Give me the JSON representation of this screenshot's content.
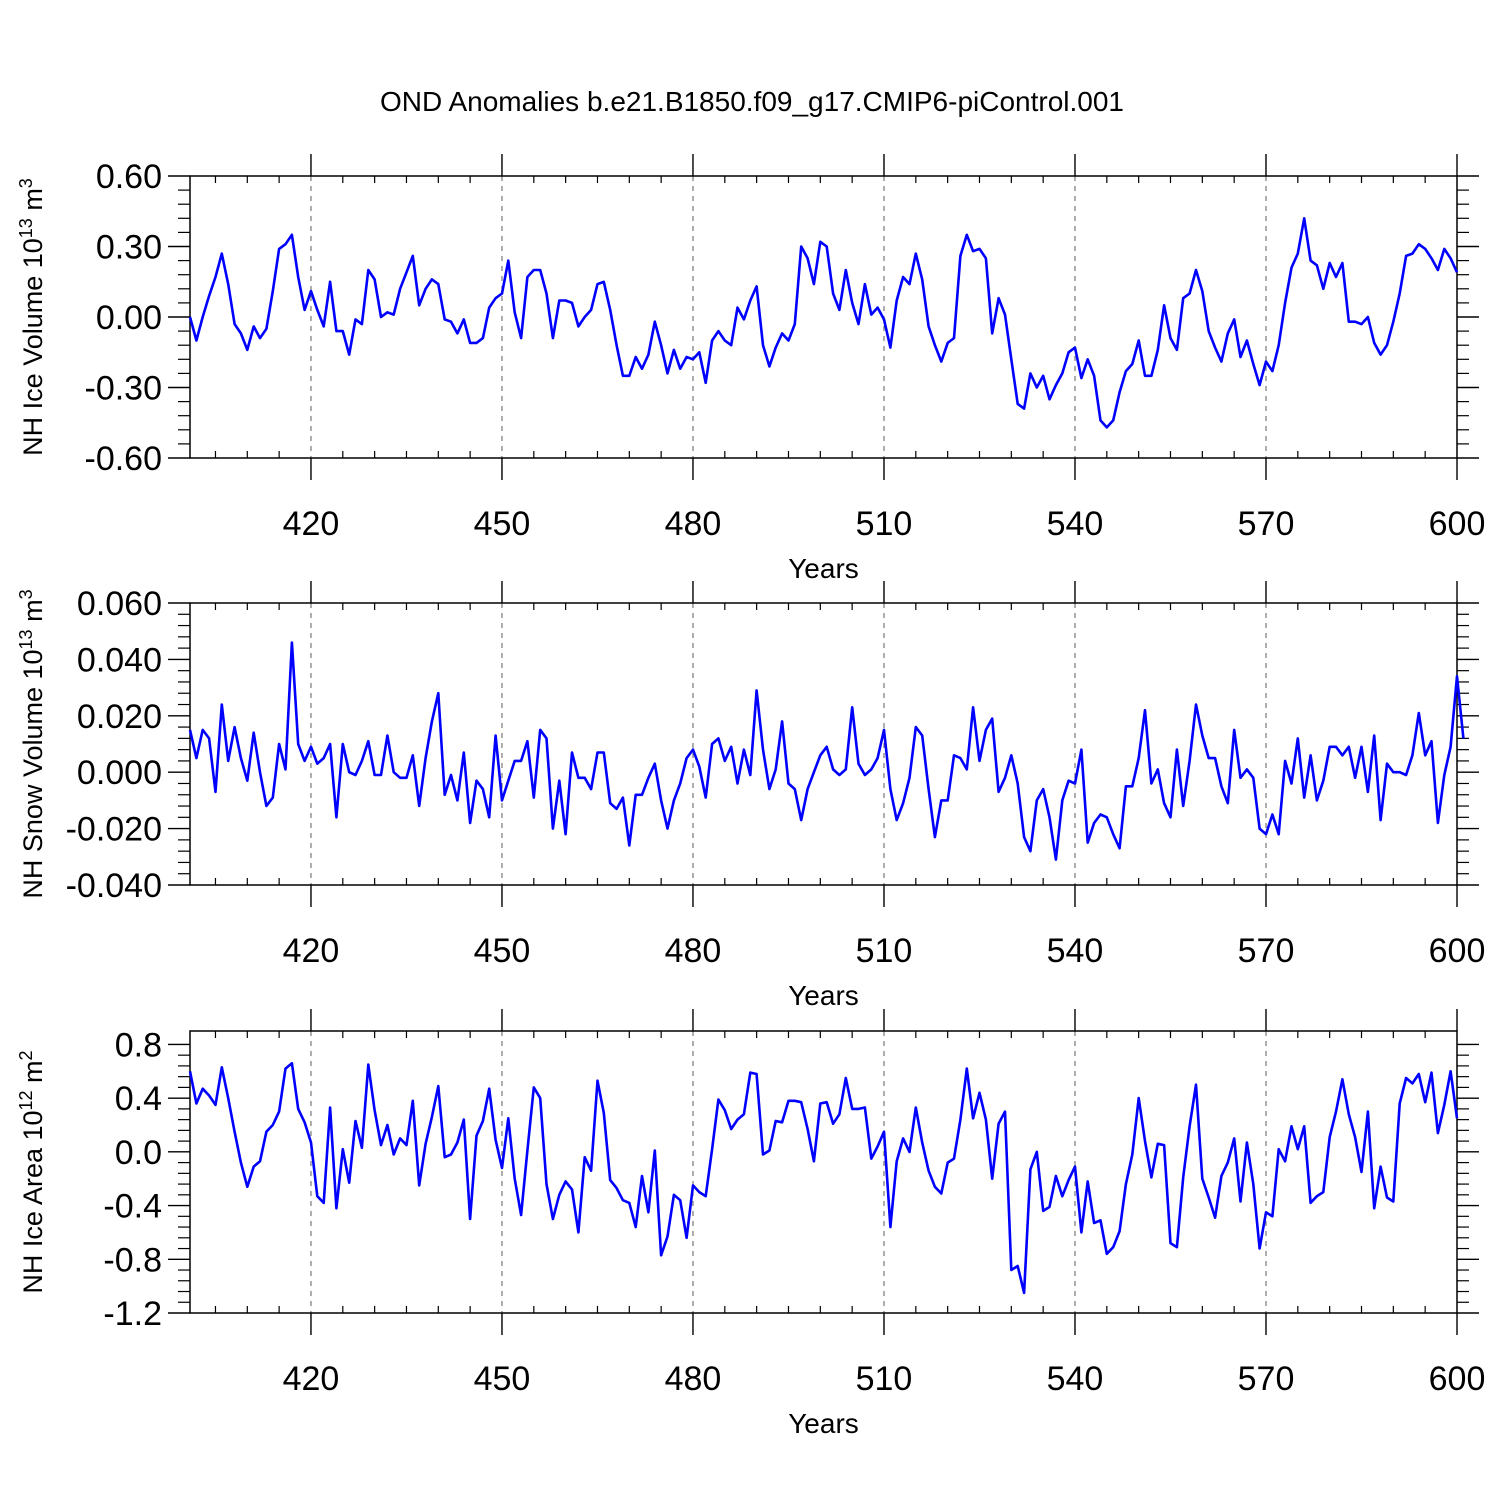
{
  "title": "OND Anomalies b.e21.B1850.f09_g17.CMIP6-piControl.001",
  "line_color": "#0000ff",
  "chart_data": [
    {
      "type": "line",
      "ylabel": {
        "main": "NH Ice Volume 10",
        "exp": "13",
        "unit": " m",
        "unit_exp": "3"
      },
      "xlabel": "Years",
      "xlim": [
        401,
        600
      ],
      "ylim": [
        -0.6,
        0.6
      ],
      "xticks": [
        420,
        450,
        480,
        510,
        540,
        570,
        600
      ],
      "yticks": [
        -0.6,
        -0.3,
        0.0,
        0.3,
        0.6
      ],
      "ytick_labels": [
        "-0.60",
        "-0.30",
        "0.00",
        "0.30",
        "0.60"
      ],
      "series": [
        {
          "name": "NH Ice Volume",
          "x_start": 401,
          "x_step": 1,
          "values": [
            0.0,
            -0.1,
            0.0,
            0.09,
            0.17,
            0.27,
            0.14,
            -0.03,
            -0.07,
            -0.14,
            -0.04,
            -0.09,
            -0.05,
            0.11,
            0.29,
            0.31,
            0.35,
            0.17,
            0.03,
            0.11,
            0.03,
            -0.04,
            0.15,
            -0.06,
            -0.06,
            -0.16,
            -0.01,
            -0.03,
            0.2,
            0.16,
            0.0,
            0.02,
            0.01,
            0.12,
            0.19,
            0.26,
            0.05,
            0.12,
            0.16,
            0.14,
            -0.01,
            -0.02,
            -0.07,
            -0.01,
            -0.11,
            -0.11,
            -0.09,
            0.04,
            0.08,
            0.1,
            0.24,
            0.02,
            -0.09,
            0.17,
            0.2,
            0.2,
            0.1,
            -0.09,
            0.07,
            0.07,
            0.06,
            -0.04,
            0.0,
            0.03,
            0.14,
            0.15,
            0.03,
            -0.12,
            -0.25,
            -0.25,
            -0.17,
            -0.22,
            -0.16,
            -0.02,
            -0.12,
            -0.24,
            -0.14,
            -0.22,
            -0.17,
            -0.18,
            -0.15,
            -0.28,
            -0.1,
            -0.06,
            -0.1,
            -0.12,
            0.04,
            -0.01,
            0.07,
            0.13,
            -0.12,
            -0.21,
            -0.13,
            -0.07,
            -0.1,
            -0.03,
            0.3,
            0.25,
            0.14,
            0.32,
            0.3,
            0.1,
            0.03,
            0.2,
            0.06,
            -0.03,
            0.14,
            0.01,
            0.04,
            -0.01,
            -0.13,
            0.07,
            0.17,
            0.14,
            0.27,
            0.16,
            -0.04,
            -0.12,
            -0.19,
            -0.11,
            -0.09,
            0.26,
            0.35,
            0.28,
            0.29,
            0.25,
            -0.07,
            0.08,
            0.01,
            -0.18,
            -0.37,
            -0.39,
            -0.24,
            -0.3,
            -0.25,
            -0.35,
            -0.29,
            -0.24,
            -0.15,
            -0.13,
            -0.26,
            -0.18,
            -0.25,
            -0.44,
            -0.47,
            -0.44,
            -0.32,
            -0.23,
            -0.2,
            -0.1,
            -0.25,
            -0.25,
            -0.14,
            0.05,
            -0.09,
            -0.14,
            0.08,
            0.1,
            0.2,
            0.11,
            -0.06,
            -0.13,
            -0.19,
            -0.07,
            -0.01,
            -0.17,
            -0.1,
            -0.2,
            -0.29,
            -0.19,
            -0.23,
            -0.12,
            0.06,
            0.21,
            0.27,
            0.42,
            0.24,
            0.22,
            0.12,
            0.23,
            0.17,
            0.23,
            -0.02,
            -0.02,
            -0.03,
            0.0,
            -0.11,
            -0.16,
            -0.12,
            -0.02,
            0.1,
            0.26,
            0.27,
            0.31,
            0.29,
            0.25,
            0.2,
            0.29,
            0.25,
            0.19
          ]
        }
      ]
    },
    {
      "type": "line",
      "ylabel": {
        "main": "NH Snow Volume 10",
        "exp": "13",
        "unit": " m",
        "unit_exp": "3"
      },
      "xlabel": "Years",
      "xlim": [
        401,
        600
      ],
      "ylim": [
        -0.04,
        0.06
      ],
      "xticks": [
        420,
        450,
        480,
        510,
        540,
        570,
        600
      ],
      "yticks": [
        -0.04,
        -0.02,
        0.0,
        0.02,
        0.04,
        0.06
      ],
      "ytick_labels": [
        "-0.040",
        "-0.020",
        "0.000",
        "0.020",
        "0.040",
        "0.060"
      ],
      "series": [
        {
          "name": "NH Snow Volume",
          "x_start": 401,
          "x_step": 1,
          "values": [
            0.015,
            0.005,
            0.015,
            0.012,
            -0.007,
            0.024,
            0.004,
            0.016,
            0.005,
            -0.003,
            0.014,
            0.0,
            -0.012,
            -0.009,
            0.01,
            0.001,
            0.046,
            0.01,
            0.004,
            0.009,
            0.003,
            0.005,
            0.01,
            -0.016,
            0.01,
            0.0,
            -0.001,
            0.004,
            0.011,
            -0.001,
            -0.001,
            0.013,
            0.0,
            -0.002,
            -0.002,
            0.006,
            -0.012,
            0.005,
            0.018,
            0.028,
            -0.008,
            -0.001,
            -0.01,
            0.007,
            -0.018,
            -0.003,
            -0.006,
            -0.016,
            0.013,
            -0.01,
            -0.003,
            0.004,
            0.004,
            0.011,
            -0.009,
            0.015,
            0.012,
            -0.02,
            -0.003,
            -0.022,
            0.007,
            -0.002,
            -0.002,
            -0.006,
            0.007,
            0.007,
            -0.011,
            -0.013,
            -0.009,
            -0.026,
            -0.008,
            -0.008,
            -0.002,
            0.003,
            -0.01,
            -0.02,
            -0.01,
            -0.004,
            0.005,
            0.008,
            0.002,
            -0.009,
            0.01,
            0.012,
            0.004,
            0.009,
            -0.004,
            0.008,
            -0.001,
            0.029,
            0.008,
            -0.006,
            0.001,
            0.018,
            -0.004,
            -0.006,
            -0.017,
            -0.006,
            0.0,
            0.006,
            0.009,
            0.001,
            -0.001,
            0.001,
            0.023,
            0.003,
            -0.001,
            0.001,
            0.005,
            0.015,
            -0.006,
            -0.017,
            -0.011,
            -0.002,
            0.016,
            0.013,
            -0.006,
            -0.023,
            -0.01,
            -0.01,
            0.006,
            0.005,
            0.001,
            0.023,
            0.004,
            0.015,
            0.019,
            -0.007,
            -0.002,
            0.006,
            -0.004,
            -0.023,
            -0.028,
            -0.01,
            -0.006,
            -0.016,
            -0.031,
            -0.01,
            -0.003,
            -0.004,
            0.008,
            -0.025,
            -0.018,
            -0.015,
            -0.016,
            -0.022,
            -0.027,
            -0.005,
            -0.005,
            0.005,
            0.022,
            -0.004,
            0.001,
            -0.011,
            -0.016,
            0.008,
            -0.012,
            0.004,
            0.024,
            0.013,
            0.005,
            0.005,
            -0.005,
            -0.011,
            0.015,
            -0.002,
            0.001,
            -0.002,
            -0.02,
            -0.022,
            -0.015,
            -0.022,
            0.004,
            -0.004,
            0.012,
            -0.009,
            0.006,
            -0.01,
            -0.003,
            0.009,
            0.009,
            0.006,
            0.009,
            -0.002,
            0.009,
            -0.007,
            0.013,
            -0.017,
            0.003,
            0.0,
            0.0,
            -0.001,
            0.006,
            0.021,
            0.006,
            0.011,
            -0.018,
            -0.001,
            0.009,
            0.034,
            0.012
          ]
        }
      ]
    },
    {
      "type": "line",
      "ylabel": {
        "main": "NH Ice Area 10",
        "exp": "12",
        "unit": " m",
        "unit_exp": "2"
      },
      "xlabel": "Years",
      "xlim": [
        401,
        600
      ],
      "ylim": [
        -1.2,
        0.9
      ],
      "xticks": [
        420,
        450,
        480,
        510,
        540,
        570,
        600
      ],
      "yticks": [
        -1.2,
        -0.8,
        -0.4,
        0.0,
        0.4,
        0.8
      ],
      "ytick_labels": [
        "-1.2",
        "-0.8",
        "-0.4",
        "0.0",
        "0.4",
        "0.8"
      ],
      "series": [
        {
          "name": "NH Ice Area",
          "x_start": 401,
          "x_step": 1,
          "values": [
            0.6,
            0.36,
            0.47,
            0.42,
            0.35,
            0.63,
            0.4,
            0.15,
            -0.08,
            -0.26,
            -0.11,
            -0.07,
            0.15,
            0.2,
            0.3,
            0.62,
            0.66,
            0.32,
            0.22,
            0.07,
            -0.33,
            -0.38,
            0.33,
            -0.42,
            0.02,
            -0.23,
            0.23,
            0.03,
            0.65,
            0.31,
            0.05,
            0.2,
            -0.02,
            0.1,
            0.05,
            0.38,
            -0.25,
            0.06,
            0.26,
            0.49,
            -0.04,
            -0.02,
            0.07,
            0.24,
            -0.5,
            0.12,
            0.23,
            0.47,
            0.09,
            -0.12,
            0.25,
            -0.2,
            -0.47,
            0.01,
            0.48,
            0.4,
            -0.24,
            -0.5,
            -0.32,
            -0.22,
            -0.28,
            -0.6,
            -0.04,
            -0.14,
            0.53,
            0.29,
            -0.21,
            -0.27,
            -0.36,
            -0.38,
            -0.56,
            -0.18,
            -0.45,
            0.01,
            -0.77,
            -0.63,
            -0.32,
            -0.36,
            -0.64,
            -0.25,
            -0.3,
            -0.33,
            0.02,
            0.39,
            0.31,
            0.17,
            0.24,
            0.28,
            0.59,
            0.58,
            -0.02,
            0.01,
            0.23,
            0.22,
            0.38,
            0.38,
            0.37,
            0.17,
            -0.07,
            0.36,
            0.37,
            0.21,
            0.28,
            0.55,
            0.32,
            0.32,
            0.33,
            -0.05,
            0.04,
            0.15,
            -0.56,
            -0.07,
            0.1,
            0.0,
            0.33,
            0.07,
            -0.14,
            -0.26,
            -0.31,
            -0.08,
            -0.05,
            0.24,
            0.62,
            0.25,
            0.44,
            0.24,
            -0.2,
            0.21,
            0.3,
            -0.88,
            -0.85,
            -1.05,
            -0.13,
            0.0,
            -0.44,
            -0.41,
            -0.18,
            -0.33,
            -0.21,
            -0.11,
            -0.6,
            -0.22,
            -0.53,
            -0.51,
            -0.76,
            -0.71,
            -0.59,
            -0.24,
            -0.02,
            0.4,
            0.08,
            -0.19,
            0.06,
            0.05,
            -0.68,
            -0.71,
            -0.19,
            0.19,
            0.5,
            -0.2,
            -0.34,
            -0.49,
            -0.18,
            -0.08,
            0.1,
            -0.37,
            0.07,
            -0.24,
            -0.72,
            -0.45,
            -0.48,
            0.02,
            -0.07,
            0.19,
            0.02,
            0.19,
            -0.38,
            -0.33,
            -0.3,
            0.11,
            0.3,
            0.54,
            0.28,
            0.11,
            -0.15,
            0.3,
            -0.42,
            -0.11,
            -0.34,
            -0.37,
            0.36,
            0.55,
            0.51,
            0.58,
            0.37,
            0.59,
            0.14,
            0.35,
            0.6,
            0.25
          ]
        }
      ]
    }
  ]
}
